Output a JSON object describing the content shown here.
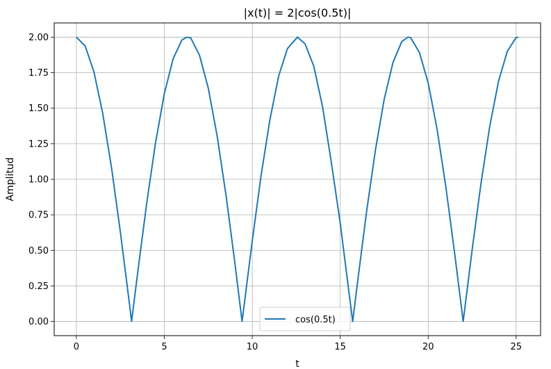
{
  "chart_data": {
    "type": "line",
    "title": "|x(t)| = 2|cos(0.5t)|",
    "xlabel": "t",
    "ylabel": "Amplitud",
    "xlim": [
      -1.26,
      26.39
    ],
    "ylim": [
      -0.1,
      2.1
    ],
    "xticks": [
      0,
      5,
      10,
      15,
      20,
      25
    ],
    "xtick_labels": [
      "0",
      "5",
      "10",
      "15",
      "20",
      "25"
    ],
    "yticks": [
      0.0,
      0.25,
      0.5,
      0.75,
      1.0,
      1.25,
      1.5,
      1.75,
      2.0
    ],
    "ytick_labels": [
      "0.00",
      "0.25",
      "0.50",
      "0.75",
      "1.00",
      "1.25",
      "1.50",
      "1.75",
      "2.00"
    ],
    "grid": true,
    "legend_position": "lower center",
    "series": [
      {
        "name": "cos(0.5t)",
        "color": "#1f77b4",
        "x": [
          0,
          0.5,
          1,
          1.5,
          2,
          2.5,
          3,
          3.14,
          3.5,
          4,
          4.5,
          5,
          5.5,
          6,
          6.28,
          6.5,
          7,
          7.5,
          8,
          8.5,
          9,
          9.42,
          9.5,
          10,
          10.5,
          11,
          11.5,
          12,
          12.57,
          13,
          13.5,
          14,
          14.5,
          15,
          15.5,
          15.71,
          16,
          16.5,
          17,
          17.5,
          18,
          18.5,
          18.85,
          19,
          19.5,
          20,
          20.5,
          21,
          21.5,
          21.99,
          22.5,
          23,
          23.5,
          24,
          24.5,
          25,
          25.13
        ],
        "y": [
          2.0,
          1.938,
          1.755,
          1.463,
          1.081,
          0.631,
          0.141,
          0.0,
          0.357,
          0.832,
          1.256,
          1.602,
          1.848,
          1.98,
          2.0,
          1.995,
          1.873,
          1.641,
          1.307,
          0.894,
          0.423,
          0.0,
          0.077,
          0.567,
          1.026,
          1.417,
          1.726,
          1.92,
          2.0,
          1.953,
          1.795,
          1.508,
          1.114,
          0.692,
          0.202,
          0.0,
          0.291,
          0.774,
          1.205,
          1.563,
          1.822,
          1.969,
          2.0,
          1.997,
          1.893,
          1.678,
          1.357,
          0.951,
          0.484,
          0.0,
          0.504,
          0.969,
          1.372,
          1.69,
          1.901,
          1.997,
          2.0
        ]
      }
    ]
  }
}
